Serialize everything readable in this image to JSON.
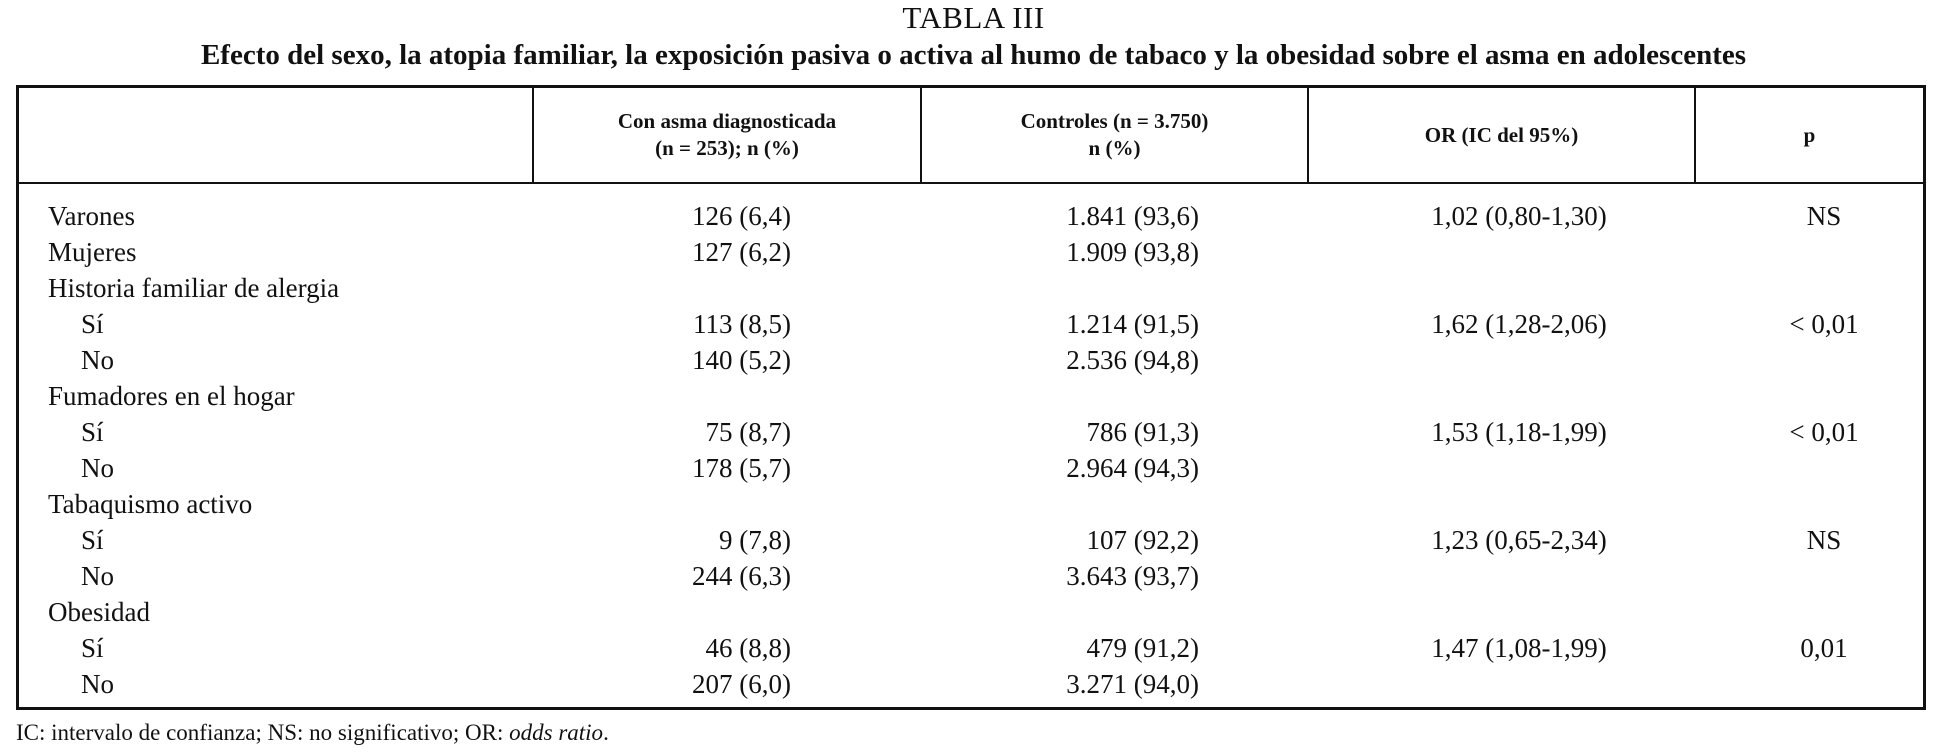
{
  "table": {
    "label": "TABLA III",
    "title": "Efecto del sexo, la atopia familiar, la exposición pasiva o activa al humo de tabaco y la obesidad sobre el asma en adolescentes",
    "headers": {
      "asma_line1": "Con asma diagnosticada",
      "asma_line2": "(n = 253); n (%)",
      "ctrl_line1": "Controles (n = 3.750)",
      "ctrl_line2": "n (%)",
      "or": "OR (IC del 95%)",
      "p": "p"
    },
    "rows": [
      {
        "label": "Varones",
        "asma": "126 (6,4)",
        "ctrl": "1.841 (93,6)",
        "or": "1,02 (0,80-1,30)",
        "p": "NS"
      },
      {
        "label": "Mujeres",
        "asma": "127 (6,2)",
        "ctrl": "1.909 (93,8)",
        "or": "",
        "p": ""
      },
      {
        "label": "Historia familiar de alergia",
        "asma": "",
        "ctrl": "",
        "or": "",
        "p": ""
      },
      {
        "label": "Sí",
        "asma": "113 (8,5)",
        "ctrl": "1.214 (91,5)",
        "or": "1,62 (1,28-2,06)",
        "p": "< 0,01"
      },
      {
        "label": "No",
        "asma": "140 (5,2)",
        "ctrl": "2.536 (94,8)",
        "or": "",
        "p": ""
      },
      {
        "label": "Fumadores en el hogar",
        "asma": "",
        "ctrl": "",
        "or": "",
        "p": ""
      },
      {
        "label": "Sí",
        "asma": "75 (8,7)",
        "ctrl": "786 (91,3)",
        "or": "1,53 (1,18-1,99)",
        "p": "< 0,01"
      },
      {
        "label": "No",
        "asma": "178 (5,7)",
        "ctrl": "2.964 (94,3)",
        "or": "",
        "p": ""
      },
      {
        "label": "Tabaquismo activo",
        "asma": "",
        "ctrl": "",
        "or": "",
        "p": ""
      },
      {
        "label": "Sí",
        "asma": "9 (7,8)",
        "ctrl": "107 (92,2)",
        "or": "1,23 (0,65-2,34)",
        "p": "NS"
      },
      {
        "label": "No",
        "asma": "244 (6,3)",
        "ctrl": "3.643 (93,7)",
        "or": "",
        "p": ""
      },
      {
        "label": "Obesidad",
        "asma": "",
        "ctrl": "",
        "or": "",
        "p": ""
      },
      {
        "label": "Sí",
        "asma": "46 (8,8)",
        "ctrl": "479 (91,2)",
        "or": "1,47 (1,08-1,99)",
        "p": "0,01"
      },
      {
        "label": "No",
        "asma": "207 (6,0)",
        "ctrl": "3.271 (94,0)",
        "or": "",
        "p": ""
      }
    ]
  },
  "footnote": {
    "text": "IC: intervalo de confianza; NS: no significativo; OR: ",
    "italic": "odds ratio",
    "end": "."
  }
}
